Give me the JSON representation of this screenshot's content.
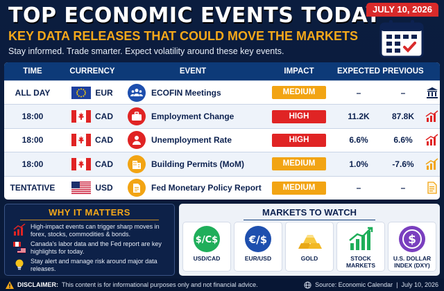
{
  "header": {
    "title": "TOP ECONOMIC EVENTS TODAY",
    "subtitle": "KEY DATA RELEASES THAT COULD MOVE THE MARKETS",
    "tagline": "Stay informed. Trade smarter. Expect volatility around these key events."
  },
  "calendar": {
    "date": "JULY 10, 2026"
  },
  "table": {
    "headers": {
      "time": "TIME",
      "currency": "CURRENCY",
      "event": "EVENT",
      "impact": "IMPACT",
      "expected": "EXPECTED",
      "previous": "PREVIOUS"
    },
    "rows": [
      {
        "time": "ALL DAY",
        "currency": "EUR",
        "flag": "eu-flag",
        "event": "ECOFIN Meetings",
        "event_icon": "people-group-icon",
        "impact": "MEDIUM",
        "expected": "–",
        "previous": "–",
        "trend_icon": "bank-icon"
      },
      {
        "time": "18:00",
        "currency": "CAD",
        "flag": "canada-flag",
        "event": "Employment Change",
        "event_icon": "briefcase-icon",
        "impact": "HIGH",
        "expected": "11.2K",
        "previous": "87.8K",
        "trend_icon": "bar-chart-up-icon"
      },
      {
        "time": "18:00",
        "currency": "CAD",
        "flag": "canada-flag",
        "event": "Unemployment Rate",
        "event_icon": "person-icon",
        "impact": "HIGH",
        "expected": "6.6%",
        "previous": "6.6%",
        "trend_icon": "bar-chart-up-icon"
      },
      {
        "time": "18:00",
        "currency": "CAD",
        "flag": "canada-flag",
        "event": "Building Permits (MoM)",
        "event_icon": "building-icon",
        "impact": "MEDIUM",
        "expected": "1.0%",
        "previous": "-7.6%",
        "trend_icon": "bar-chart-up-icon"
      },
      {
        "time": "TENTATIVE",
        "currency": "USD",
        "flag": "usa-flag",
        "event": "Fed Monetary Policy Report",
        "event_icon": "document-icon",
        "impact": "MEDIUM",
        "expected": "–",
        "previous": "–",
        "trend_icon": "report-icon"
      }
    ]
  },
  "why": {
    "title": "WHY IT MATTERS",
    "items": [
      {
        "icon": "chart-up-icon",
        "text": "High-impact events can trigger sharp moves in forex, stocks, commodities & bonds."
      },
      {
        "icon": "flags-icon",
        "text": "Canada's labor data and the Fed report are key highlights for today."
      },
      {
        "icon": "lightbulb-icon",
        "text": "Stay alert and manage risk around major data releases."
      }
    ]
  },
  "markets": {
    "title": "MARKETS TO WATCH",
    "items": [
      {
        "icon": "usd-cad-icon",
        "label": "USD/CAD"
      },
      {
        "icon": "eur-usd-icon",
        "label": "EUR/USD"
      },
      {
        "icon": "gold-bars-icon",
        "label": "GOLD"
      },
      {
        "icon": "stock-chart-icon",
        "label": "STOCK MARKETS"
      },
      {
        "icon": "dollar-index-icon",
        "label": "U.S. DOLLAR INDEX (DXY)"
      }
    ]
  },
  "footer": {
    "disclaimer_label": "DISCLAIMER:",
    "disclaimer_text": "This content is for informational purposes only and not financial advice.",
    "source": "Source: Economic Calendar  |  July 10, 2026"
  },
  "colors": {
    "navy": "#0b1d3f",
    "table_header": "#0d3a78",
    "accent_orange": "#f5a81a",
    "high": "#e02424",
    "medium": "#f2a413",
    "calendar_red": "#d92a2a"
  }
}
